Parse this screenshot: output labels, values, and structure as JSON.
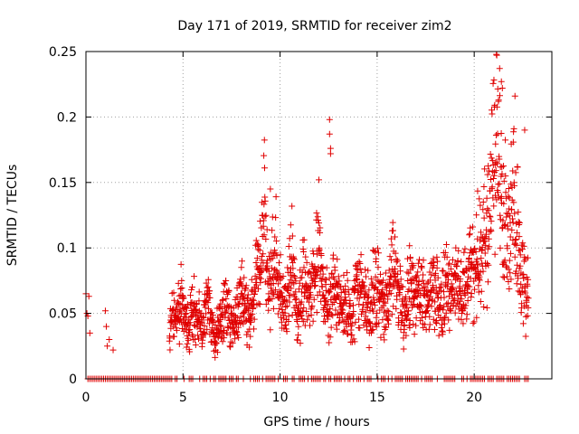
{
  "chart_data": {
    "type": "scatter",
    "title": "Day 171 of 2019, SRMTID for receiver zim2",
    "xlabel": "GPS time / hours",
    "ylabel": "SRMTID / TECUs",
    "xlim": [
      0,
      24
    ],
    "ylim": [
      0,
      0.25
    ],
    "xticks": [
      0,
      5,
      10,
      15,
      20
    ],
    "xtick_labels": [
      "0",
      "5",
      "10",
      "15",
      "20"
    ],
    "yticks": [
      0,
      0.05,
      0.1,
      0.15,
      0.2,
      0.25
    ],
    "ytick_labels": [
      "0",
      "0.05",
      "0.1",
      "0.15",
      "0.2",
      "0.25"
    ],
    "grid": true,
    "marker": "+",
    "colors": {
      "series": "#e00000",
      "grid": "#a0a0a0",
      "axis": "#000000"
    },
    "series": [
      {
        "name": "SRMTID",
        "x": [
          0.0,
          0.05,
          0.1,
          0.15,
          0.2,
          1.0,
          1.05,
          1.1,
          1.2,
          1.4,
          4.3,
          4.5,
          4.7,
          4.9,
          5.1,
          5.3,
          5.5,
          5.8,
          6.0,
          6.3,
          6.6,
          6.9,
          7.2,
          7.5,
          7.8,
          8.1,
          8.4,
          8.7,
          9.0,
          9.2,
          9.4,
          9.6,
          9.8,
          10.0,
          10.3,
          10.6,
          10.9,
          11.2,
          11.5,
          11.8,
          12.0,
          12.2,
          12.5,
          12.8,
          13.1,
          13.4,
          13.7,
          14.0,
          14.3,
          14.6,
          14.9,
          15.2,
          15.5,
          15.8,
          16.1,
          16.4,
          16.7,
          17.0,
          17.3,
          17.6,
          17.9,
          18.2,
          18.5,
          18.8,
          19.1,
          19.4,
          19.7,
          20.0,
          20.2,
          20.4,
          20.6,
          20.8,
          21.0,
          21.2,
          21.4,
          21.6,
          21.8,
          22.0,
          22.2,
          22.4,
          22.6,
          22.8
        ],
        "y": [
          0.065,
          0.05,
          0.048,
          0.063,
          0.035,
          0.052,
          0.04,
          0.025,
          0.03,
          0.022,
          0.04,
          0.055,
          0.045,
          0.06,
          0.05,
          0.035,
          0.055,
          0.045,
          0.04,
          0.055,
          0.03,
          0.045,
          0.06,
          0.04,
          0.05,
          0.065,
          0.045,
          0.07,
          0.09,
          0.12,
          0.06,
          0.08,
          0.1,
          0.065,
          0.055,
          0.09,
          0.04,
          0.075,
          0.06,
          0.08,
          0.1,
          0.065,
          0.055,
          0.07,
          0.05,
          0.06,
          0.045,
          0.07,
          0.065,
          0.05,
          0.075,
          0.06,
          0.055,
          0.085,
          0.07,
          0.045,
          0.075,
          0.06,
          0.07,
          0.055,
          0.08,
          0.06,
          0.075,
          0.065,
          0.07,
          0.06,
          0.08,
          0.085,
          0.1,
          0.095,
          0.11,
          0.13,
          0.17,
          0.19,
          0.15,
          0.13,
          0.11,
          0.14,
          0.12,
          0.08,
          0.07,
          0.06
        ],
        "spikes": [
          {
            "x": 12.55,
            "y": 0.198
          },
          {
            "x": 12.55,
            "y": 0.187
          },
          {
            "x": 12.6,
            "y": 0.176
          },
          {
            "x": 12.6,
            "y": 0.172
          },
          {
            "x": 21.4,
            "y": 0.227
          },
          {
            "x": 21.45,
            "y": 0.222
          },
          {
            "x": 22.1,
            "y": 0.216
          },
          {
            "x": 9.5,
            "y": 0.145
          },
          {
            "x": 12.0,
            "y": 0.152
          },
          {
            "x": 22.6,
            "y": 0.19
          }
        ],
        "baseline_zero": true
      }
    ]
  }
}
